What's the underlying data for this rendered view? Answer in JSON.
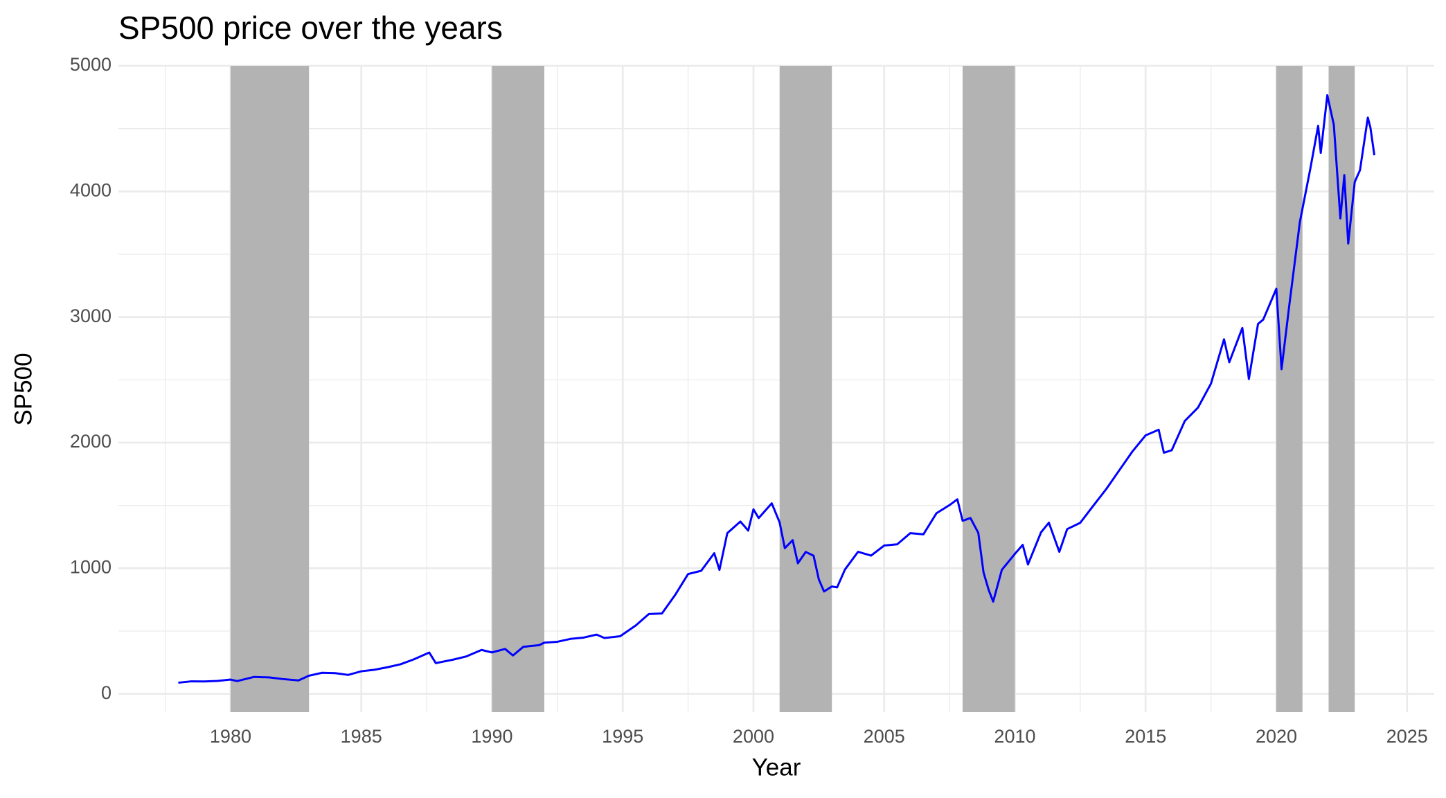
{
  "chart_data": {
    "type": "line",
    "title": "SP500 price over the years",
    "x_label": "Year",
    "y_label": "SP500",
    "color": "#0000ff",
    "band_color": "#b3b3b3",
    "grid": true,
    "xlim": [
      1975.71,
      2026.04
    ],
    "ylim": [
      -145,
      5000
    ],
    "xticks": [
      1980,
      1985,
      1990,
      1995,
      2000,
      2005,
      2010,
      2015,
      2020,
      2025
    ],
    "xminor": [
      1977.5,
      1982.5,
      1987.5,
      1992.5,
      1997.5,
      2002.5,
      2007.5,
      2012.5,
      2017.5,
      2022.5
    ],
    "yticks": [
      0,
      1000,
      2000,
      3000,
      4000,
      5000
    ],
    "yminor": [
      500,
      1500,
      2500,
      3500,
      4500
    ],
    "bands": [
      [
        1980,
        1983
      ],
      [
        1990,
        1992
      ],
      [
        2001,
        2003
      ],
      [
        2008,
        2010
      ],
      [
        2020,
        2021
      ],
      [
        2022,
        2023
      ]
    ],
    "x": [
      1978.0,
      1978.5,
      1979.0,
      1979.5,
      1980.0,
      1980.25,
      1980.9,
      1981.5,
      1982.0,
      1982.6,
      1983.0,
      1983.5,
      1984.0,
      1984.5,
      1985.0,
      1985.5,
      1986.0,
      1986.5,
      1987.0,
      1987.6,
      1987.85,
      1988.5,
      1989.0,
      1989.6,
      1990.0,
      1990.5,
      1990.8,
      1991.2,
      1991.8,
      1992.0,
      1992.5,
      1993.0,
      1993.5,
      1994.0,
      1994.3,
      1994.9,
      1995.5,
      1996.0,
      1996.5,
      1997.0,
      1997.5,
      1998.0,
      1998.5,
      1998.7,
      1999.0,
      1999.5,
      1999.8,
      2000.0,
      2000.2,
      2000.7,
      2001.0,
      2001.2,
      2001.5,
      2001.7,
      2002.0,
      2002.3,
      2002.5,
      2002.7,
      2003.0,
      2003.2,
      2003.5,
      2004.0,
      2004.5,
      2005.0,
      2005.5,
      2006.0,
      2006.5,
      2007.0,
      2007.5,
      2007.8,
      2008.0,
      2008.3,
      2008.6,
      2008.8,
      2009.0,
      2009.17,
      2009.5,
      2010.0,
      2010.3,
      2010.5,
      2011.0,
      2011.3,
      2011.7,
      2012.0,
      2012.5,
      2013.0,
      2013.5,
      2014.0,
      2014.5,
      2015.0,
      2015.5,
      2015.7,
      2016.0,
      2016.5,
      2017.0,
      2017.5,
      2018.0,
      2018.2,
      2018.7,
      2018.95,
      2019.3,
      2019.5,
      2020.0,
      2020.2,
      2020.5,
      2020.9,
      2021.3,
      2021.6,
      2021.7,
      2021.95,
      2022.2,
      2022.45,
      2022.6,
      2022.75,
      2023.0,
      2023.2,
      2023.5,
      2023.6,
      2023.75
    ],
    "values": [
      89,
      100,
      99,
      103,
      114,
      102,
      135,
      131,
      118,
      107,
      145,
      168,
      165,
      151,
      180,
      192,
      212,
      236,
      274,
      329,
      245,
      272,
      297,
      350,
      330,
      358,
      306,
      375,
      388,
      408,
      415,
      438,
      448,
      472,
      445,
      459,
      545,
      636,
      640,
      786,
      954,
      980,
      1120,
      987,
      1280,
      1372,
      1300,
      1469,
      1400,
      1517,
      1366,
      1160,
      1224,
      1040,
      1130,
      1100,
      912,
      815,
      855,
      848,
      990,
      1131,
      1101,
      1181,
      1191,
      1280,
      1270,
      1438,
      1503,
      1549,
      1378,
      1400,
      1282,
      968,
      826,
      735,
      987,
      1115,
      1186,
      1030,
      1286,
      1363,
      1131,
      1312,
      1362,
      1498,
      1632,
      1782,
      1931,
      2058,
      2103,
      1920,
      1940,
      2173,
      2278,
      2470,
      2823,
      2640,
      2913,
      2507,
      2945,
      2980,
      3225,
      2585,
      3100,
      3756,
      4180,
      4522,
      4307,
      4766,
      4530,
      3785,
      4130,
      3585,
      4076,
      4169,
      4588,
      4507,
      4288
    ]
  }
}
